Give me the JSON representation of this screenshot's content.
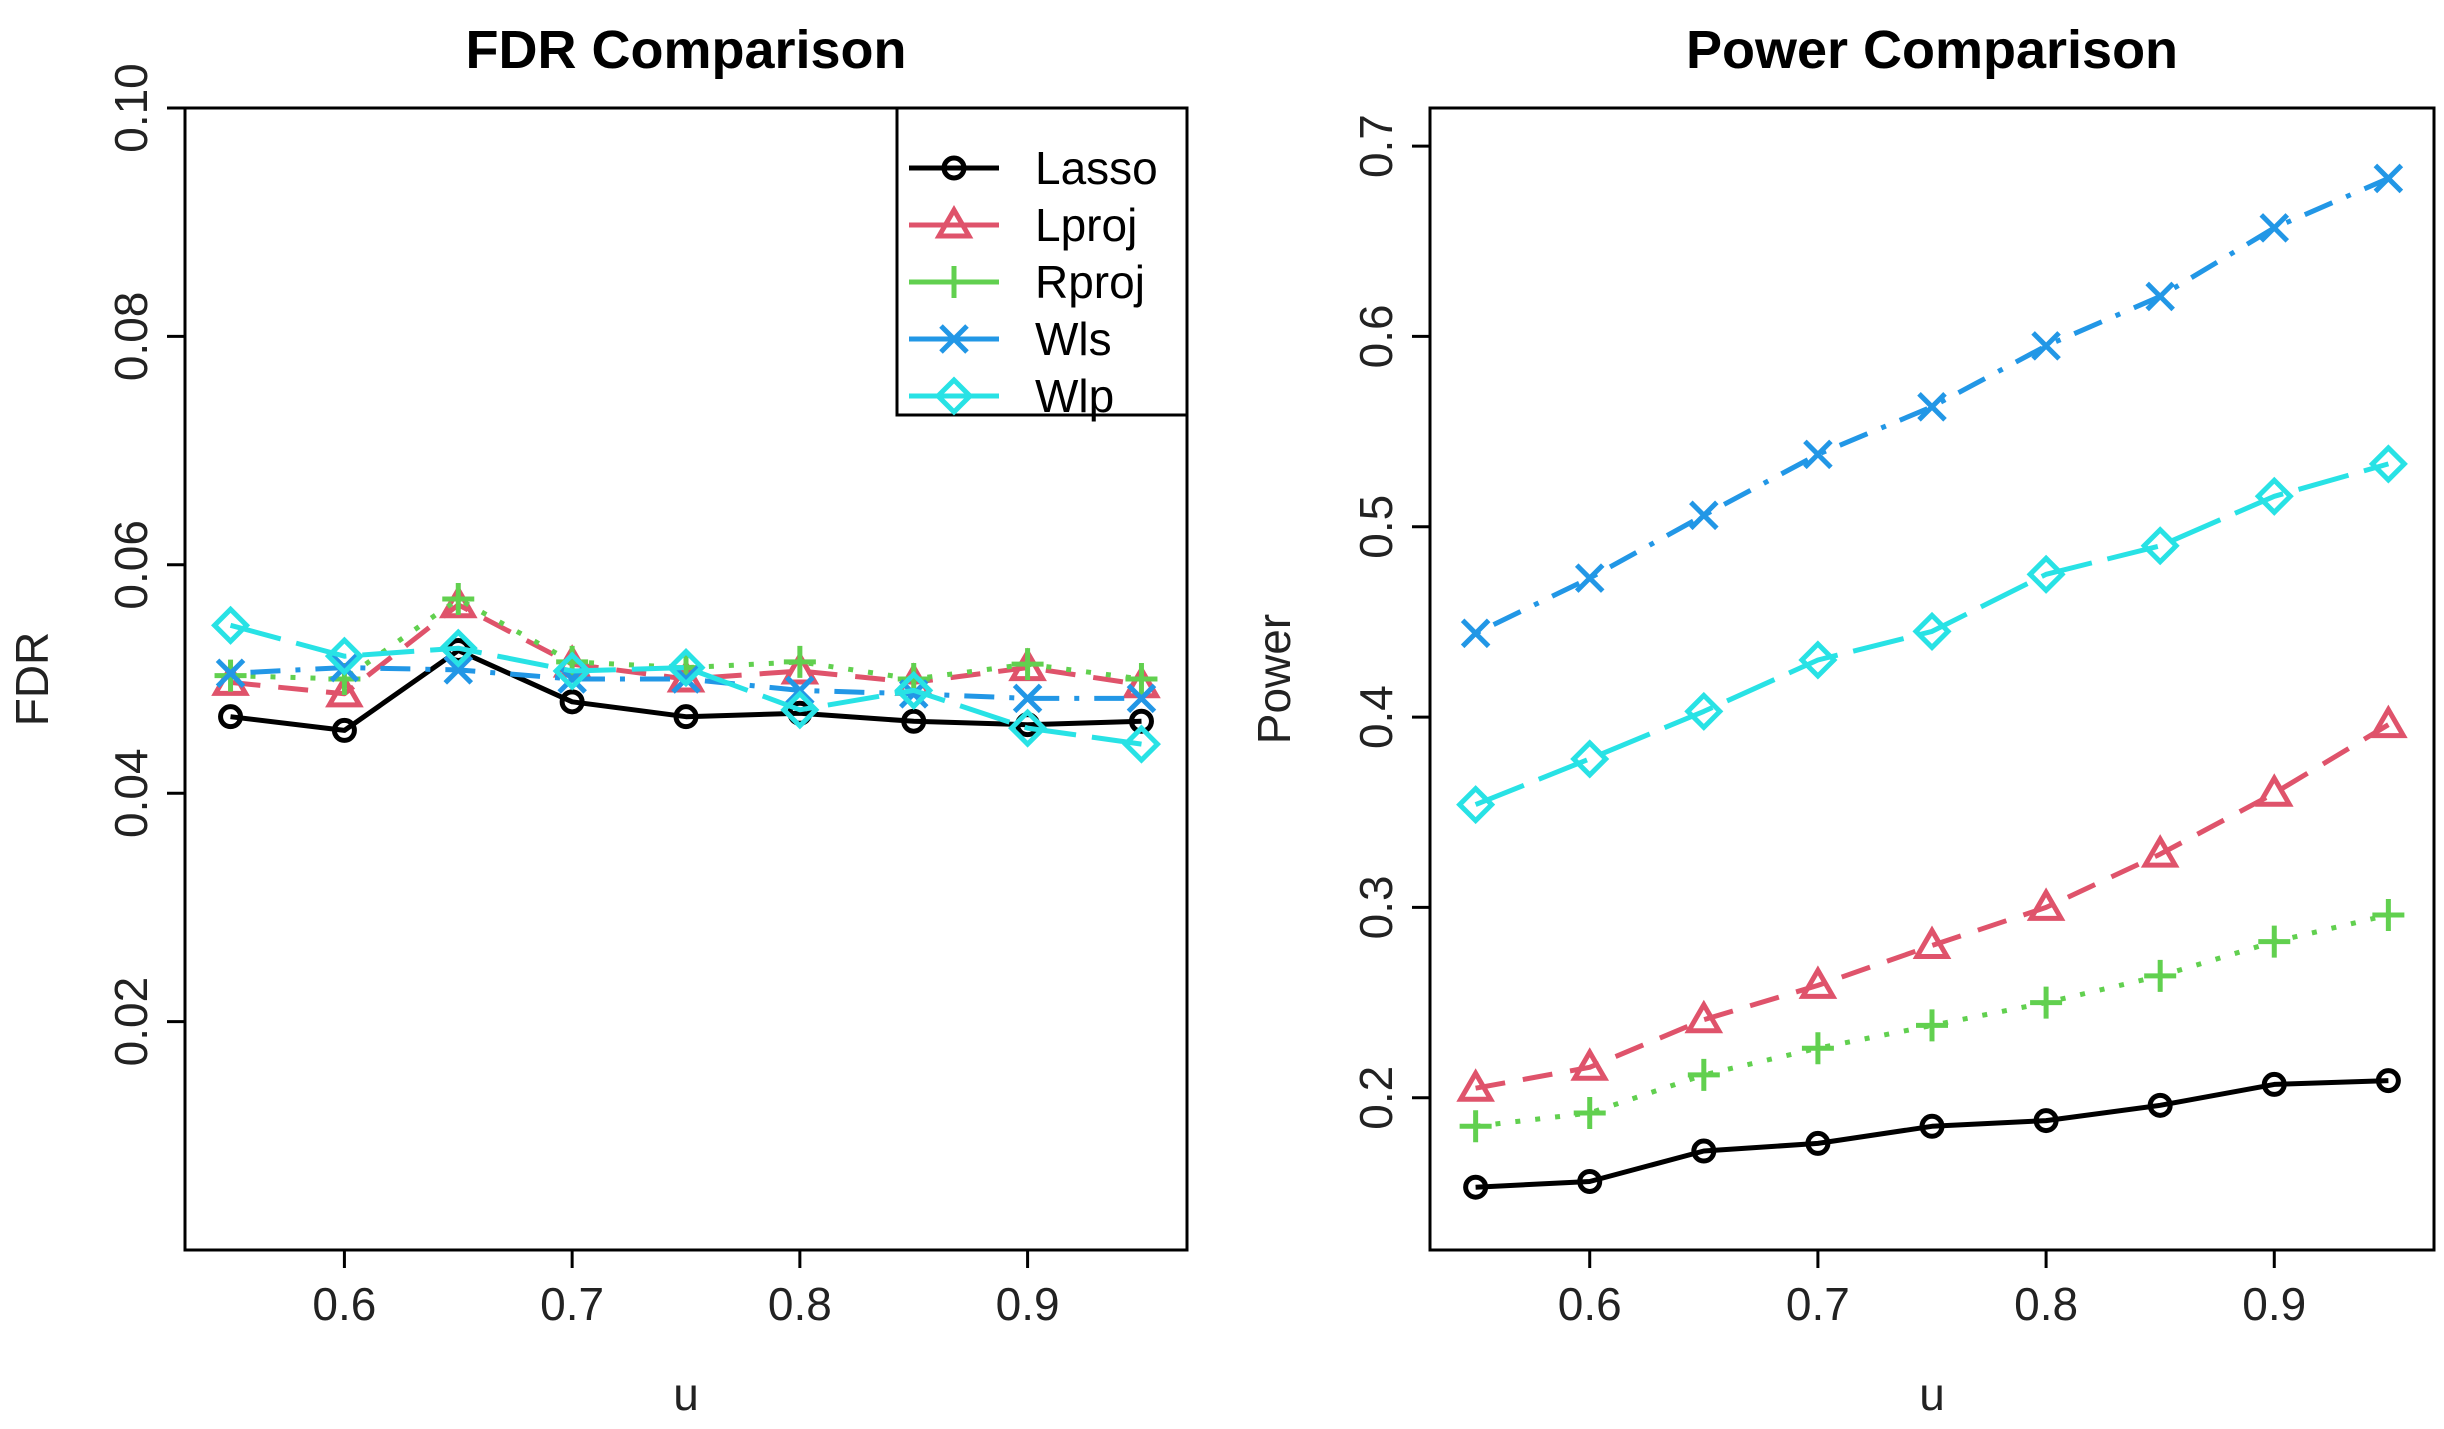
{
  "chart_data": [
    {
      "type": "line",
      "title": "FDR Comparison",
      "xlabel": "u",
      "ylabel": "FDR",
      "x": [
        0.55,
        0.6,
        0.65,
        0.7,
        0.75,
        0.8,
        0.85,
        0.9,
        0.95
      ],
      "xlim": [
        0.53,
        0.97
      ],
      "ylim": [
        0.0,
        0.1
      ],
      "xticks": [
        "0.6",
        "0.7",
        "0.8",
        "0.9"
      ],
      "yticks": [
        "0.02",
        "0.04",
        "0.06",
        "0.08",
        "0.10"
      ],
      "legend_position": "top-right",
      "series": [
        {
          "name": "Lasso",
          "color": "#000000",
          "marker": "circle",
          "dash": "solid",
          "values": [
            0.0467,
            0.0455,
            0.0525,
            0.048,
            0.0467,
            0.047,
            0.0463,
            0.046,
            0.0463
          ]
        },
        {
          "name": "Lproj",
          "color": "#DF536B",
          "marker": "triangle",
          "dash": "dashed",
          "values": [
            0.0497,
            0.0487,
            0.0565,
            0.0513,
            0.05,
            0.0507,
            0.0497,
            0.051,
            0.0495
          ]
        },
        {
          "name": "Rproj",
          "color": "#61D04F",
          "marker": "plus",
          "dash": "dotted",
          "values": [
            0.0503,
            0.05,
            0.057,
            0.0515,
            0.051,
            0.0515,
            0.05,
            0.0513,
            0.05
          ]
        },
        {
          "name": "Wls",
          "color": "#2297E6",
          "marker": "cross",
          "dash": "dotdash",
          "values": [
            0.0505,
            0.051,
            0.0508,
            0.05,
            0.05,
            0.049,
            0.0487,
            0.0483,
            0.0483
          ]
        },
        {
          "name": "Wlp",
          "color": "#28E2E5",
          "marker": "diamond",
          "dash": "longdash",
          "values": [
            0.0547,
            0.052,
            0.0527,
            0.0507,
            0.051,
            0.0473,
            0.049,
            0.0457,
            0.0443
          ]
        }
      ]
    },
    {
      "type": "line",
      "title": "Power Comparison",
      "xlabel": "u",
      "ylabel": "Power",
      "x": [
        0.55,
        0.6,
        0.65,
        0.7,
        0.75,
        0.8,
        0.85,
        0.9,
        0.95
      ],
      "xlim": [
        0.53,
        0.97
      ],
      "ylim": [
        0.12,
        0.72
      ],
      "xticks": [
        "0.6",
        "0.7",
        "0.8",
        "0.9"
      ],
      "yticks": [
        "0.2",
        "0.3",
        "0.4",
        "0.5",
        "0.6",
        "0.7"
      ],
      "series": [
        {
          "name": "Lasso",
          "color": "#000000",
          "marker": "circle",
          "dash": "solid",
          "values": [
            0.153,
            0.156,
            0.172,
            0.176,
            0.185,
            0.188,
            0.196,
            0.207,
            0.209
          ]
        },
        {
          "name": "Lproj",
          "color": "#DF536B",
          "marker": "triangle",
          "dash": "dashed",
          "values": [
            0.205,
            0.216,
            0.241,
            0.259,
            0.28,
            0.3,
            0.328,
            0.36,
            0.396
          ]
        },
        {
          "name": "Rproj",
          "color": "#61D04F",
          "marker": "plus",
          "dash": "dotted",
          "values": [
            0.185,
            0.192,
            0.212,
            0.226,
            0.238,
            0.25,
            0.264,
            0.282,
            0.296
          ]
        },
        {
          "name": "Wls",
          "color": "#2297E6",
          "marker": "cross",
          "dash": "dotdash",
          "values": [
            0.444,
            0.473,
            0.506,
            0.538,
            0.563,
            0.595,
            0.621,
            0.657,
            0.683
          ]
        },
        {
          "name": "Wlp",
          "color": "#28E2E5",
          "marker": "diamond",
          "dash": "longdash",
          "values": [
            0.354,
            0.378,
            0.403,
            0.43,
            0.445,
            0.475,
            0.49,
            0.516,
            0.533
          ]
        }
      ]
    }
  ]
}
